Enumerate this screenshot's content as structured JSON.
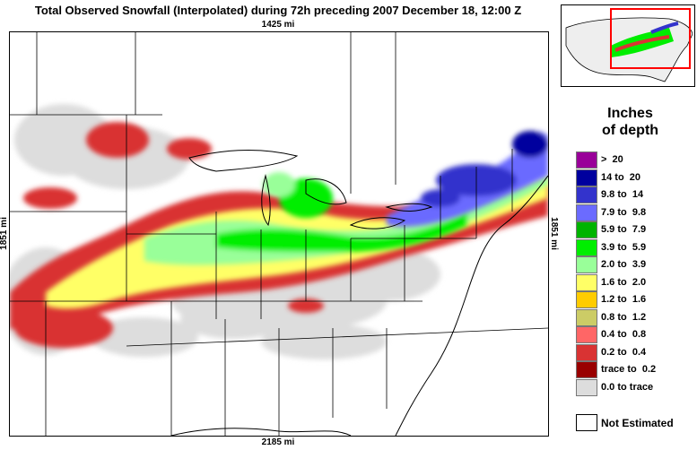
{
  "title": "Total Observed Snowfall (Interpolated) during 72h preceding 2007 December 18, 12:00 Z",
  "dimensions": {
    "top": "1425 mi",
    "bottom": "2185 mi",
    "left": "1851 mi",
    "right": "1851 mi"
  },
  "legend": {
    "title_line1": "Inches",
    "title_line2": "of depth",
    "items": [
      {
        "label": ">  20",
        "color": "#990099"
      },
      {
        "label": "14 to  20",
        "color": "#00009e"
      },
      {
        "label": "9.8 to  14",
        "color": "#3333cc"
      },
      {
        "label": "7.9 to  9.8",
        "color": "#6b6bff"
      },
      {
        "label": "5.9 to  7.9",
        "color": "#00b400"
      },
      {
        "label": "3.9 to  5.9",
        "color": "#00ee00"
      },
      {
        "label": "2.0 to  3.9",
        "color": "#99ff99"
      },
      {
        "label": "1.6 to  2.0",
        "color": "#ffff66"
      },
      {
        "label": "1.2 to  1.6",
        "color": "#ffcc00"
      },
      {
        "label": "0.8 to  1.2",
        "color": "#cccc66"
      },
      {
        "label": "0.4 to  0.8",
        "color": "#ff6666"
      },
      {
        "label": "0.2 to  0.4",
        "color": "#d93333"
      },
      {
        "label": "trace to  0.2",
        "color": "#990000"
      },
      {
        "label": "0.0 to trace",
        "color": "#dddddd"
      }
    ],
    "not_estimated": "Not Estimated"
  }
}
